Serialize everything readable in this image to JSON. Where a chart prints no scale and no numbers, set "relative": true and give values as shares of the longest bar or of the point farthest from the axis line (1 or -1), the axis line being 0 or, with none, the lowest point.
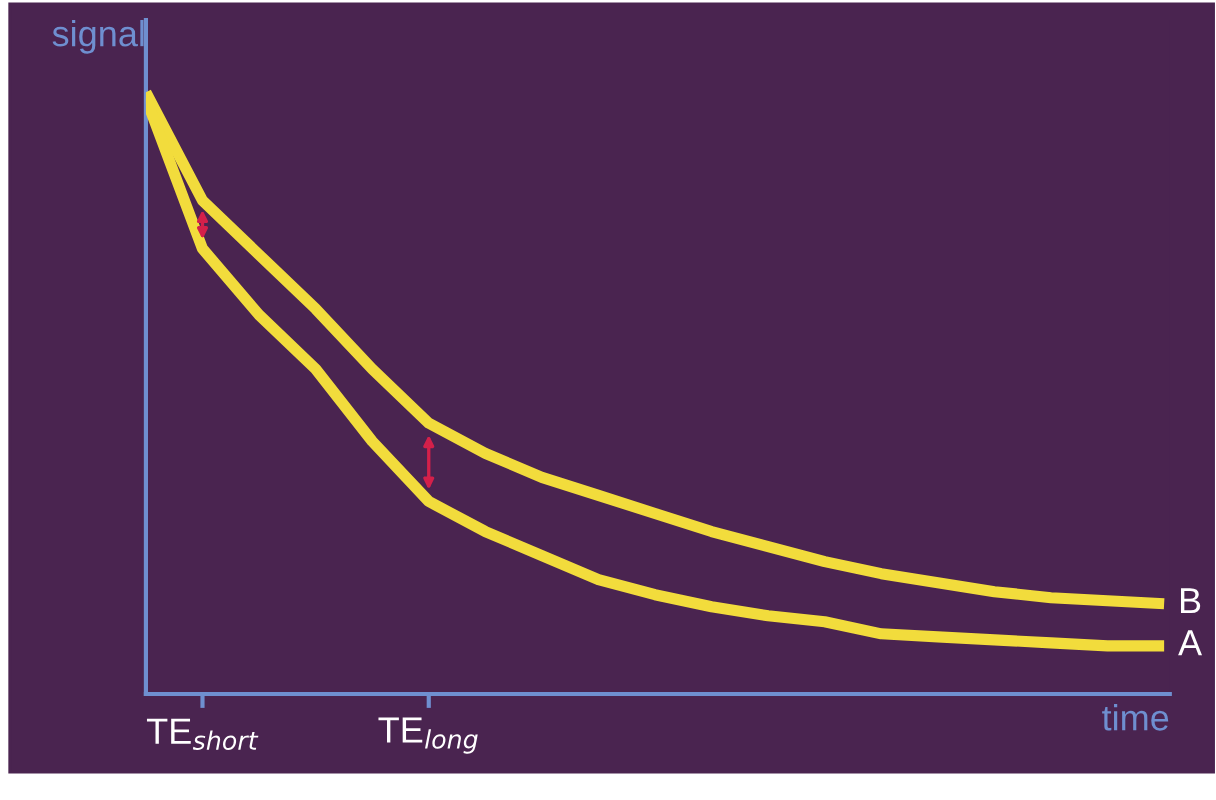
{
  "chart_data": {
    "type": "line",
    "relative": true,
    "xlabel": "time",
    "ylabel": "signal",
    "categories": [
      null,
      "TE$_{short}$",
      null,
      null,
      null,
      "TE$_{long}$",
      null,
      null,
      null,
      null,
      null,
      null,
      null,
      null,
      null,
      null,
      null,
      null,
      null
    ],
    "series": [
      {
        "name": "B",
        "color": "#f2dc3c",
        "values": [
          1.0,
          0.82,
          0.73,
          0.64,
          0.54,
          0.45,
          0.4,
          0.36,
          0.33,
          0.3,
          0.27,
          0.245,
          0.22,
          0.2,
          0.185,
          0.17,
          0.16,
          0.155,
          0.15
        ]
      },
      {
        "name": "A",
        "color": "#f2dc3c",
        "values": [
          0.99,
          0.74,
          0.63,
          0.54,
          0.42,
          0.32,
          0.27,
          0.23,
          0.19,
          0.165,
          0.145,
          0.13,
          0.12,
          0.1,
          0.095,
          0.09,
          0.085,
          0.08,
          0.08
        ]
      }
    ],
    "legend": false,
    "grid": false,
    "marker": "none",
    "line_style": "solid"
  }
}
